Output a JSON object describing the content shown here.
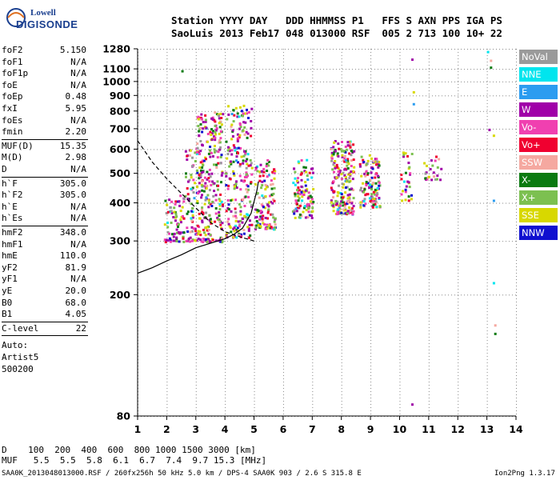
{
  "logo": {
    "line1": "Lowell",
    "line2": "DIGISONDE"
  },
  "header": {
    "line1": "Station YYYY DAY   DDD HHMMSS P1   FFS S AXN PPS IGA PS",
    "line2": "SaoLuis 2013 Feb17 048 013000 RSF  005 2 713 100 10+ 22"
  },
  "params": [
    {
      "label": "foF2",
      "value": "5.150"
    },
    {
      "label": "foF1",
      "value": "N/A"
    },
    {
      "label": "foF1p",
      "value": "N/A"
    },
    {
      "label": "foE",
      "value": "N/A"
    },
    {
      "label": "foEp",
      "value": "0.48"
    },
    {
      "label": "fxI",
      "value": "5.95"
    },
    {
      "label": "foEs",
      "value": "N/A"
    },
    {
      "label": "fmin",
      "value": "2.20"
    },
    {
      "label": "MUF(D)",
      "value": "15.35"
    },
    {
      "label": "M(D)",
      "value": "2.98"
    },
    {
      "label": "D",
      "value": "N/A"
    },
    {
      "label": "h`F",
      "value": "305.0"
    },
    {
      "label": "h`F2",
      "value": "305.0"
    },
    {
      "label": "h`E",
      "value": "N/A"
    },
    {
      "label": "h`Es",
      "value": "N/A"
    },
    {
      "label": "hmF2",
      "value": "348.0"
    },
    {
      "label": "hmF1",
      "value": "N/A"
    },
    {
      "label": "hmE",
      "value": "110.0"
    },
    {
      "label": "yF2",
      "value": "81.9"
    },
    {
      "label": "yF1",
      "value": "N/A"
    },
    {
      "label": "yE",
      "value": "20.0"
    },
    {
      "label": "B0",
      "value": "68.0"
    },
    {
      "label": "B1",
      "value": "4.05"
    },
    {
      "label": "C-level",
      "value": "22"
    }
  ],
  "auto": {
    "line1": "Auto:",
    "line2": "Artist5",
    "line3": "500200"
  },
  "legend": [
    {
      "label": "NoVal",
      "color": "#9a9a9a"
    },
    {
      "label": "NNE",
      "color": "#00e5ee"
    },
    {
      "label": "E",
      "color": "#2b9cf0"
    },
    {
      "label": "W",
      "color": "#a000a8"
    },
    {
      "label": "Vo-",
      "color": "#f040b0"
    },
    {
      "label": "Vo+",
      "color": "#f00030"
    },
    {
      "label": "SSW",
      "color": "#f5a8a0"
    },
    {
      "label": "X-",
      "color": "#0a7a10"
    },
    {
      "label": "X+",
      "color": "#7cc050"
    },
    {
      "label": "SSE",
      "color": "#d8d800"
    },
    {
      "label": "NNW",
      "color": "#1010d0"
    }
  ],
  "chart_data": {
    "type": "scatter",
    "xlim": [
      1,
      14
    ],
    "ylim": [
      80,
      1280
    ],
    "yscale": "log",
    "xticks": [
      "1",
      "2",
      "3",
      "4",
      "5",
      "6",
      "7",
      "8",
      "9",
      "10",
      "11",
      "12",
      "13",
      "14"
    ],
    "yticks": [
      "80",
      "200",
      "300",
      "400",
      "500",
      "600",
      "700",
      "800",
      "900",
      "1000",
      "1100",
      "1280"
    ],
    "grid": true,
    "clusters": [
      {
        "xmin": 1.9,
        "xmax": 2.6,
        "ymin": 300,
        "ymax": 430,
        "n": 80
      },
      {
        "xmin": 2.6,
        "xmax": 3.2,
        "ymin": 300,
        "ymax": 620,
        "n": 90
      },
      {
        "xmin": 3.0,
        "xmax": 3.9,
        "ymin": 300,
        "ymax": 800,
        "n": 260
      },
      {
        "xmin": 4.0,
        "xmax": 4.9,
        "ymin": 310,
        "ymax": 840,
        "n": 220
      },
      {
        "xmin": 5.0,
        "xmax": 5.7,
        "ymin": 330,
        "ymax": 560,
        "n": 130
      },
      {
        "xmin": 6.3,
        "xmax": 7.0,
        "ymin": 360,
        "ymax": 560,
        "n": 110
      },
      {
        "xmin": 7.6,
        "xmax": 8.4,
        "ymin": 370,
        "ymax": 650,
        "n": 210
      },
      {
        "xmin": 8.6,
        "xmax": 9.3,
        "ymin": 390,
        "ymax": 580,
        "n": 130
      },
      {
        "xmin": 10.0,
        "xmax": 10.4,
        "ymin": 410,
        "ymax": 590,
        "n": 30
      },
      {
        "xmin": 10.8,
        "xmax": 11.4,
        "ymin": 480,
        "ymax": 590,
        "n": 25
      }
    ],
    "sparse_points": [
      {
        "x": 2.5,
        "y": 1090
      },
      {
        "x": 10.4,
        "y": 1190
      },
      {
        "x": 10.45,
        "y": 930
      },
      {
        "x": 10.45,
        "y": 850
      },
      {
        "x": 13.0,
        "y": 1260
      },
      {
        "x": 13.1,
        "y": 1180
      },
      {
        "x": 13.1,
        "y": 1120
      },
      {
        "x": 13.05,
        "y": 700
      },
      {
        "x": 13.2,
        "y": 670
      },
      {
        "x": 13.2,
        "y": 410
      },
      {
        "x": 13.2,
        "y": 220
      },
      {
        "x": 13.25,
        "y": 160
      },
      {
        "x": 13.25,
        "y": 150
      },
      {
        "x": 10.4,
        "y": 88
      }
    ],
    "profile_solid": [
      [
        1,
        235
      ],
      [
        1.5,
        245
      ],
      [
        2,
        258
      ],
      [
        2.5,
        270
      ],
      [
        3,
        285
      ],
      [
        3.5,
        295
      ],
      [
        4,
        305
      ],
      [
        4.3,
        315
      ],
      [
        4.6,
        330
      ],
      [
        4.9,
        370
      ],
      [
        5.1,
        440
      ],
      [
        5.15,
        470
      ]
    ],
    "profile_dashed": [
      [
        1,
        640
      ],
      [
        1.5,
        545
      ],
      [
        2,
        480
      ],
      [
        2.5,
        430
      ],
      [
        3,
        385
      ],
      [
        3.5,
        345
      ],
      [
        4,
        322
      ],
      [
        4.5,
        310
      ],
      [
        5,
        300
      ]
    ]
  },
  "footer": {
    "line1": "D    100  200  400  600  800 1000 1500 3000 [km]",
    "line2": "MUF   5.5  5.5  5.8  6.1  6.7  7.4  9.7 15.3 [MHz]",
    "line3": "SAA0K_2013048013000.RSF / 260fx256h 50 kHz 5.0 km / DPS-4 SAA0K 903 / 2.6 S 315.8 E",
    "line4": "Ion2Png 1.3.17"
  }
}
